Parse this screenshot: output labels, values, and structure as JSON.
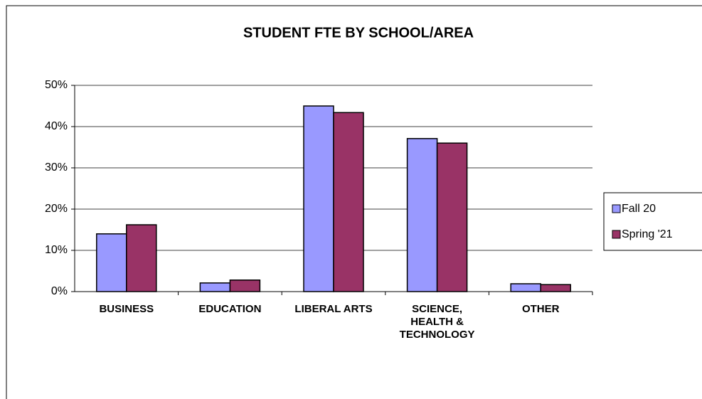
{
  "chart_data": {
    "type": "bar",
    "title": "STUDENT FTE BY SCHOOL/AREA",
    "categories": [
      "BUSINESS",
      "EDUCATION",
      "LIBERAL ARTS",
      "SCIENCE, HEALTH & TECHNOLOGY",
      "OTHER"
    ],
    "series": [
      {
        "name": "Fall 20",
        "color": "#9999ff",
        "values": [
          14.0,
          2.1,
          45.0,
          37.1,
          1.9
        ]
      },
      {
        "name": "Spring '21",
        "color": "#993366",
        "values": [
          16.2,
          2.8,
          43.4,
          36.0,
          1.7
        ]
      }
    ],
    "ylim": [
      0,
      50
    ],
    "yticks": [
      {
        "value": 0,
        "label": "0%"
      },
      {
        "value": 10,
        "label": "10%"
      },
      {
        "value": 20,
        "label": "20%"
      },
      {
        "value": 30,
        "label": "30%"
      },
      {
        "value": 40,
        "label": "40%"
      },
      {
        "value": 50,
        "label": "50%"
      }
    ],
    "grid": true,
    "legend": "right"
  }
}
